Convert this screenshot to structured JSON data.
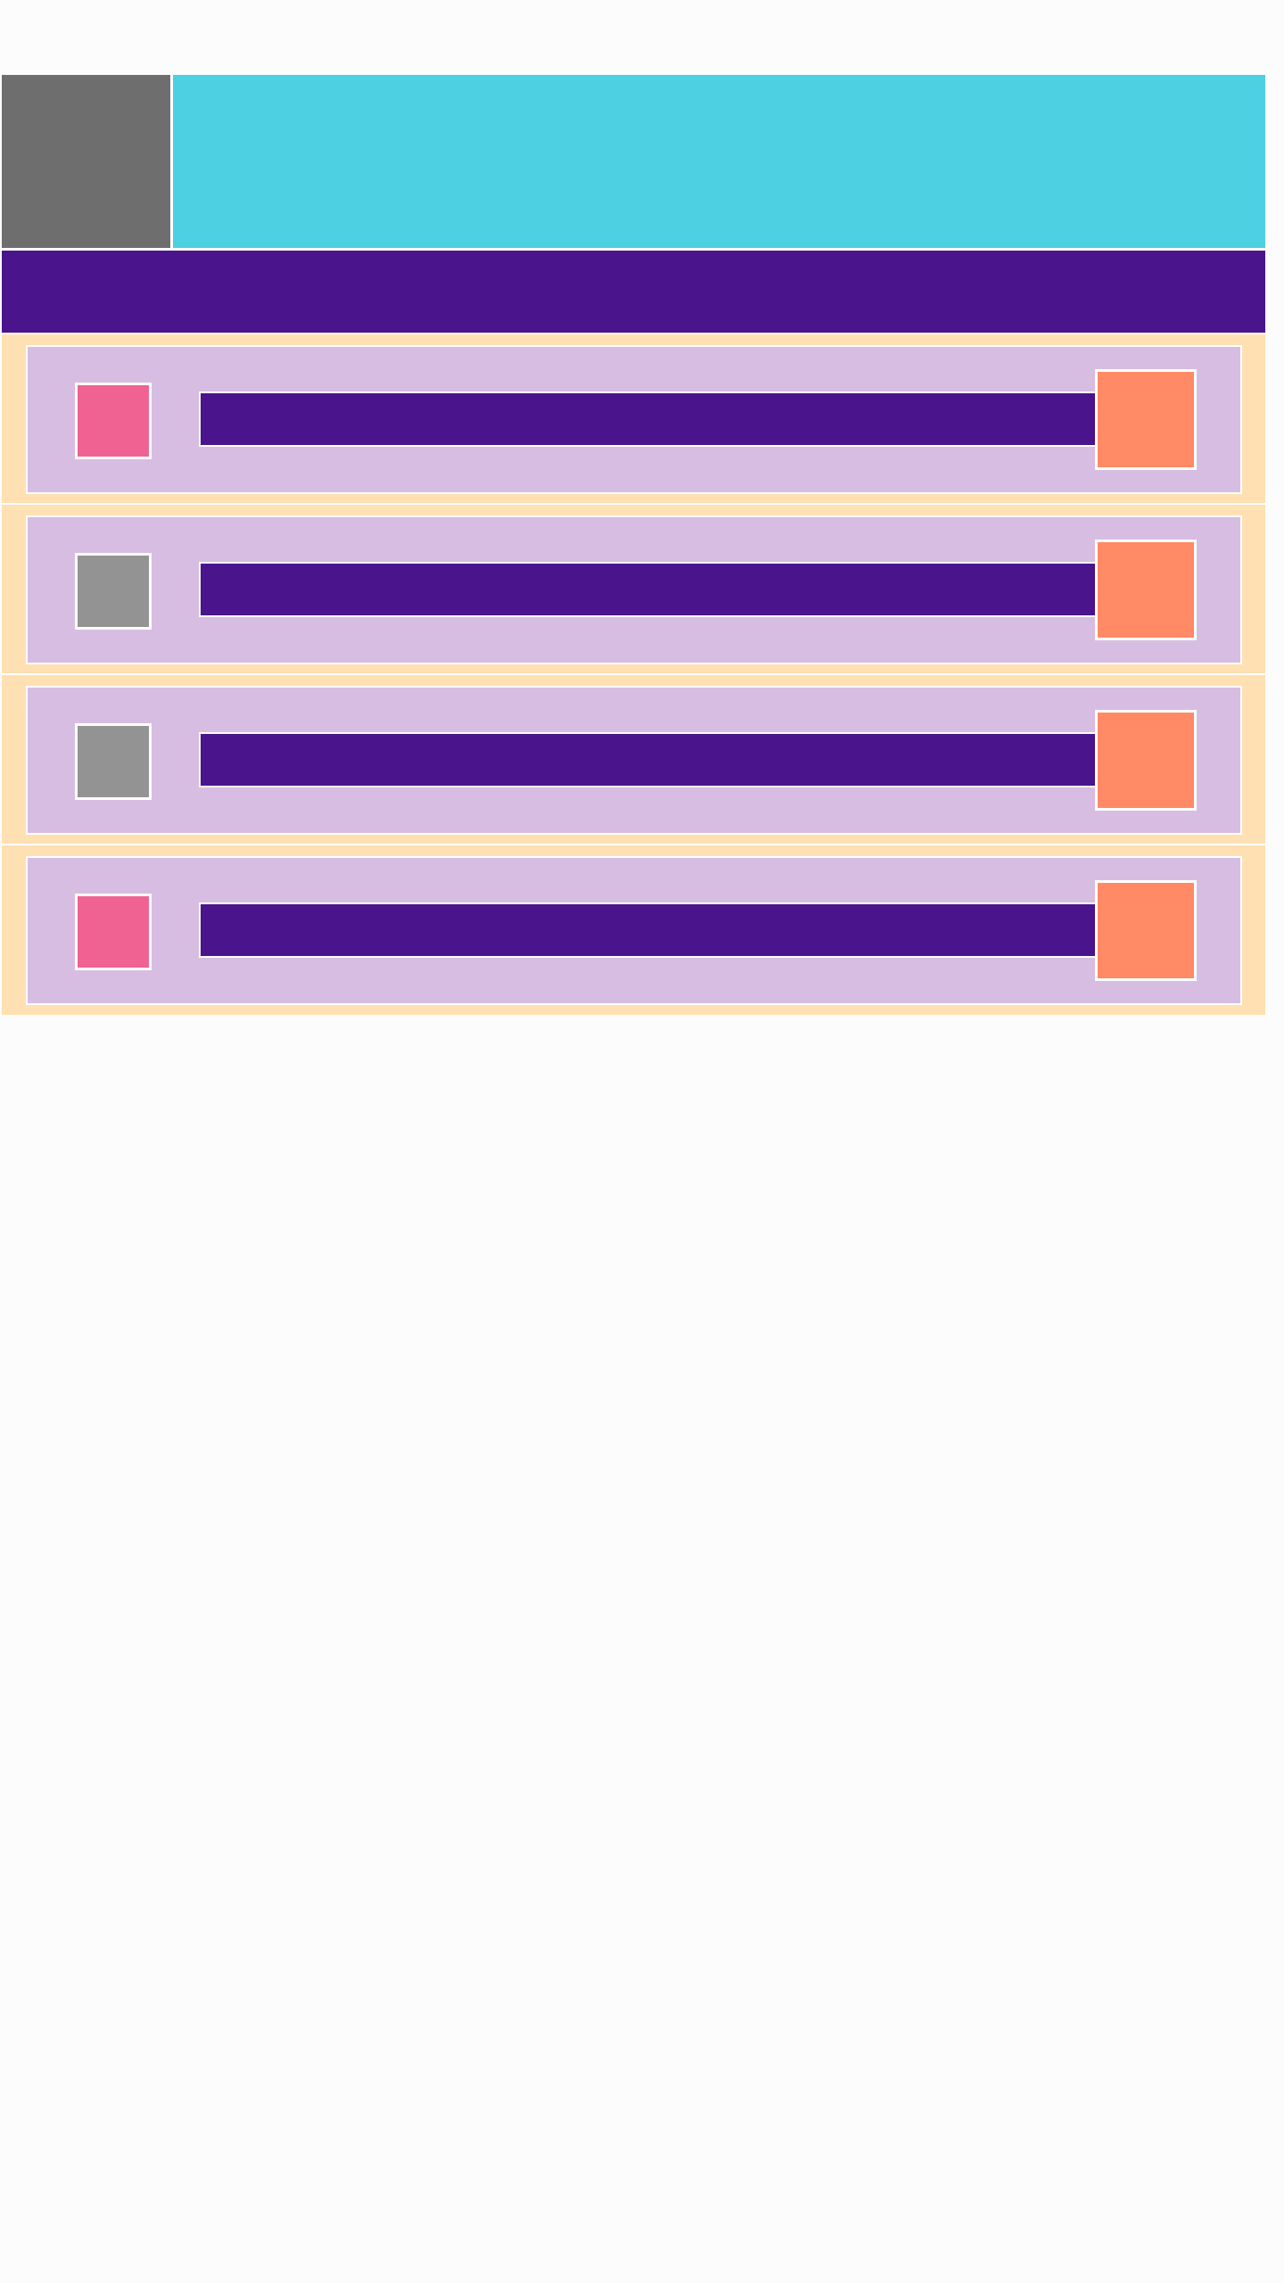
{
  "colors": {
    "background": "#fcfcfc",
    "avatar": "#6e6e6e",
    "banner": "#4dd0e1",
    "toolbar": "#4a148c",
    "row_background": "#ffe0b2",
    "card": "#d7bde2",
    "checkbox_on": "#f06292",
    "checkbox_off": "#939393",
    "action": "#ff8a65"
  },
  "list": {
    "items": [
      {
        "checked": true,
        "label": ""
      },
      {
        "checked": false,
        "label": ""
      },
      {
        "checked": false,
        "label": ""
      },
      {
        "checked": true,
        "label": ""
      }
    ]
  }
}
